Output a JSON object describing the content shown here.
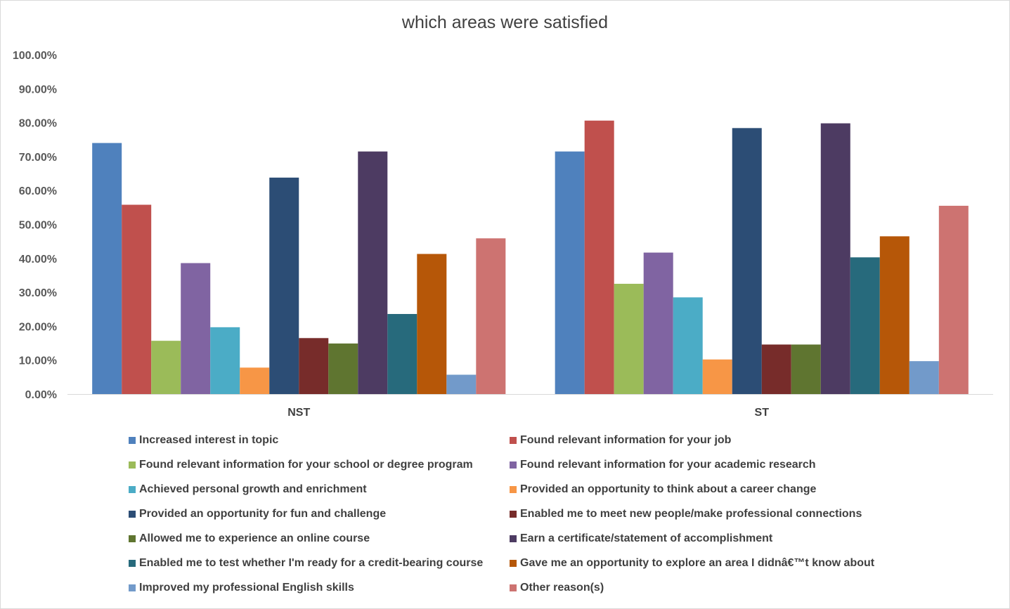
{
  "chart_data": {
    "type": "bar",
    "title": "which areas were satisfied",
    "xlabel": "",
    "ylabel": "",
    "ylim": [
      0,
      1
    ],
    "ytick_step": 0.1,
    "y_tick_labels": [
      "0.00%",
      "10.00%",
      "20.00%",
      "30.00%",
      "40.00%",
      "50.00%",
      "60.00%",
      "70.00%",
      "80.00%",
      "90.00%",
      "100.00%"
    ],
    "categories": [
      "NST",
      "ST"
    ],
    "grid": false,
    "legend_position": "bottom",
    "series": [
      {
        "name": "Increased interest in topic",
        "color": "#4F81BD",
        "values": [
          0.74,
          0.715
        ]
      },
      {
        "name": "Found relevant information for your job",
        "color": "#C0504D",
        "values": [
          0.558,
          0.806
        ]
      },
      {
        "name": "Found relevant information for your school or degree program",
        "color": "#9BBB59",
        "values": [
          0.157,
          0.325
        ]
      },
      {
        "name": "Found relevant information for your academic research",
        "color": "#8064A2",
        "values": [
          0.386,
          0.417
        ]
      },
      {
        "name": "Achieved personal growth and enrichment",
        "color": "#4BACC6",
        "values": [
          0.197,
          0.285
        ]
      },
      {
        "name": "Provided an opportunity to think about a career change",
        "color": "#F79646",
        "values": [
          0.078,
          0.102
        ]
      },
      {
        "name": "Provided an opportunity for fun and challenge",
        "color": "#2C4D75",
        "values": [
          0.638,
          0.784
        ]
      },
      {
        "name": "Enabled me to meet new people/make professional connections",
        "color": "#772C2A",
        "values": [
          0.165,
          0.146
        ]
      },
      {
        "name": "Allowed me to experience an online course",
        "color": "#5F7530",
        "values": [
          0.149,
          0.146
        ]
      },
      {
        "name": "Earn a certificate/statement of accomplishment",
        "color": "#4D3B62",
        "values": [
          0.715,
          0.798
        ]
      },
      {
        "name": "Enabled me to test whether I'm ready for a credit-bearing course",
        "color": "#276A7C",
        "values": [
          0.236,
          0.403
        ]
      },
      {
        "name": "Gave me an opportunity to explore an area I didnâ€™t know about",
        "color": "#B65708",
        "values": [
          0.413,
          0.465
        ]
      },
      {
        "name": "Improved my professional English skills",
        "color": "#729ACA",
        "values": [
          0.057,
          0.097
        ]
      },
      {
        "name": "Other reason(s)",
        "color": "#CD7371",
        "values": [
          0.459,
          0.555
        ]
      }
    ]
  }
}
